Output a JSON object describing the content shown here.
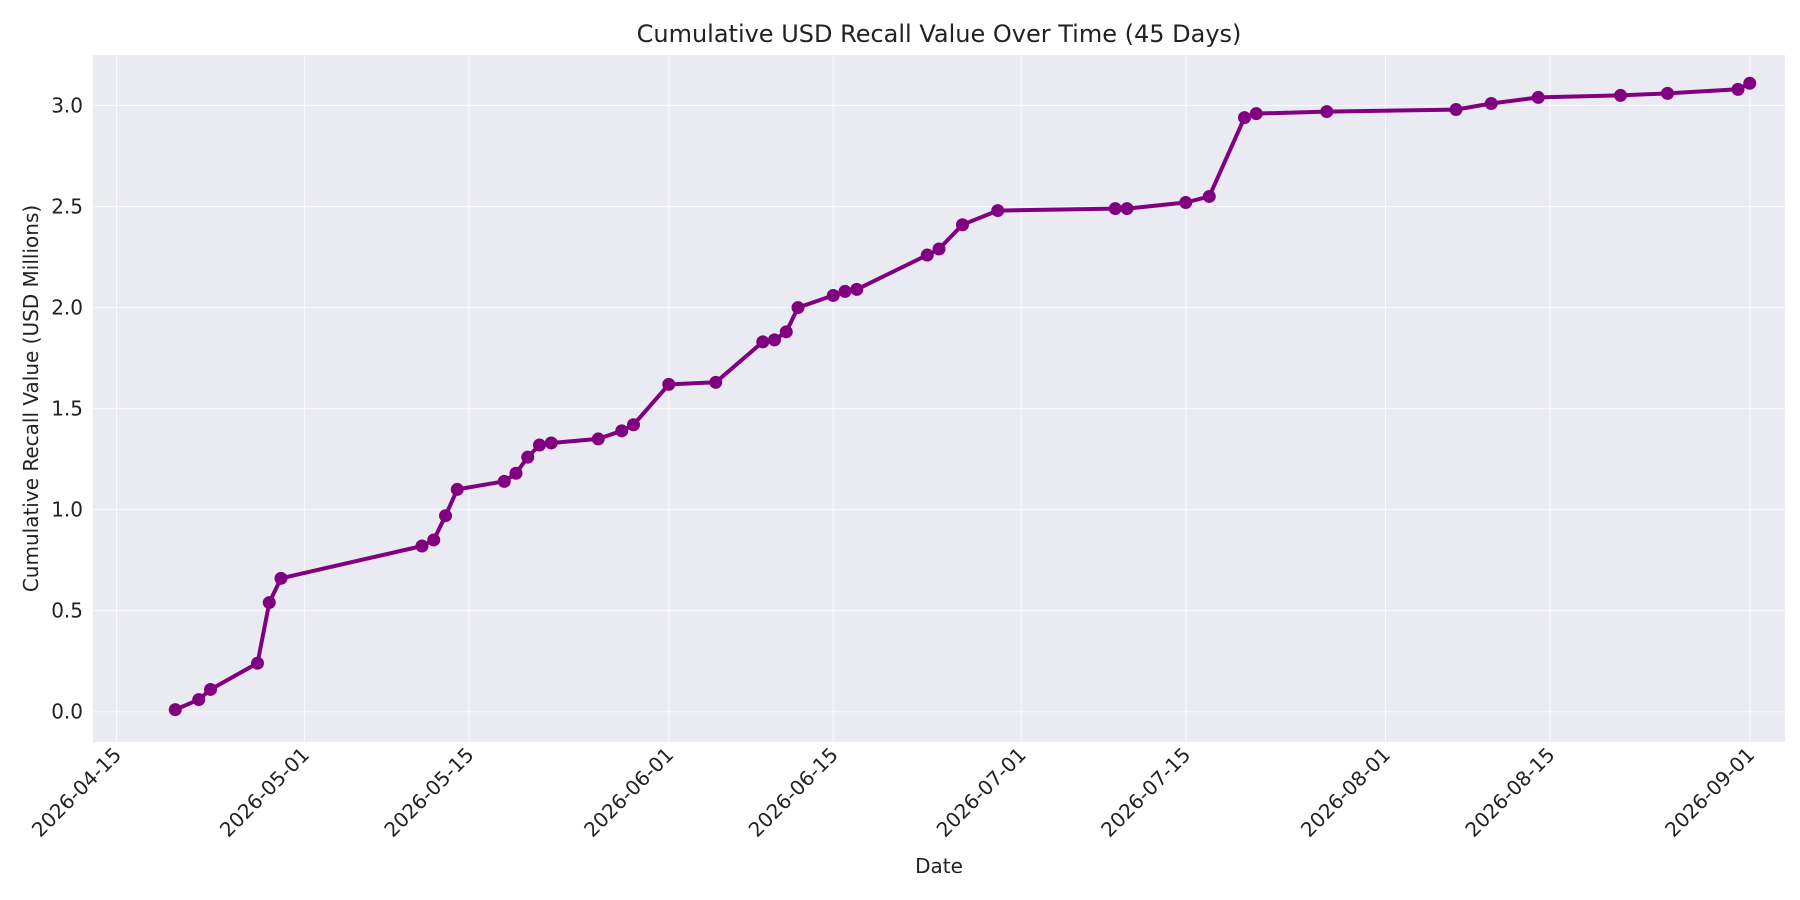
{
  "chart_data": {
    "type": "line",
    "title": "Cumulative USD Recall Value Over Time (45 Days)",
    "xlabel": "Date",
    "ylabel": "Cumulative Recall Value (USD Millions)",
    "xlim": [
      "2026-04-13",
      "2026-09-04"
    ],
    "ylim": [
      -0.15,
      3.25
    ],
    "grid": true,
    "x_ticks": [
      "2026-04-15",
      "2026-05-01",
      "2026-05-15",
      "2026-06-01",
      "2026-06-15",
      "2026-07-01",
      "2026-07-15",
      "2026-08-01",
      "2026-08-15",
      "2026-09-01"
    ],
    "y_ticks": [
      0.0,
      0.5,
      1.0,
      1.5,
      2.0,
      2.5,
      3.0
    ],
    "y_tick_labels": [
      "0.0",
      "0.5",
      "1.0",
      "1.5",
      "2.0",
      "2.5",
      "3.0"
    ],
    "colors": {
      "series": "#800080",
      "plot_background": "#eaeaf2",
      "grid": "#ffffff"
    },
    "series": [
      {
        "x": [
          "2026-04-20",
          "2026-04-22",
          "2026-04-23",
          "2026-04-27",
          "2026-04-28",
          "2026-04-29",
          "2026-05-11",
          "2026-05-12",
          "2026-05-13",
          "2026-05-14",
          "2026-05-18",
          "2026-05-19",
          "2026-05-20",
          "2026-05-21",
          "2026-05-22",
          "2026-05-26",
          "2026-05-28",
          "2026-05-29",
          "2026-06-01",
          "2026-06-05",
          "2026-06-09",
          "2026-06-10",
          "2026-06-11",
          "2026-06-12",
          "2026-06-15",
          "2026-06-16",
          "2026-06-17",
          "2026-06-23",
          "2026-06-24",
          "2026-06-26",
          "2026-06-29",
          "2026-07-09",
          "2026-07-10",
          "2026-07-15",
          "2026-07-17",
          "2026-07-20",
          "2026-07-21",
          "2026-07-27",
          "2026-08-07",
          "2026-08-10",
          "2026-08-14",
          "2026-08-21",
          "2026-08-25",
          "2026-08-31",
          "2026-09-01"
        ],
        "values": [
          0.01,
          0.06,
          0.11,
          0.24,
          0.54,
          0.66,
          0.82,
          0.85,
          0.97,
          1.1,
          1.14,
          1.18,
          1.26,
          1.32,
          1.33,
          1.35,
          1.39,
          1.42,
          1.62,
          1.63,
          1.83,
          1.84,
          1.88,
          2.0,
          2.06,
          2.08,
          2.09,
          2.26,
          2.29,
          2.41,
          2.48,
          2.49,
          2.49,
          2.52,
          2.55,
          2.94,
          2.96,
          2.97,
          2.98,
          3.01,
          3.04,
          3.05,
          3.06,
          3.08,
          3.11
        ]
      }
    ]
  }
}
